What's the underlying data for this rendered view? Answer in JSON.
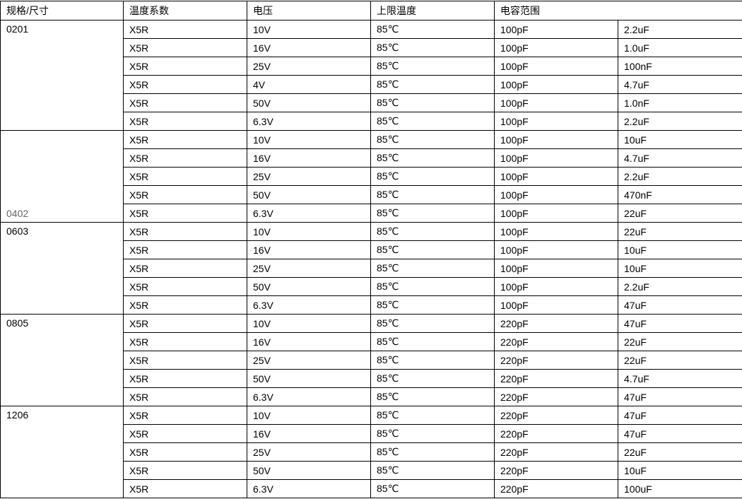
{
  "headers": [
    "规格/尺寸",
    "温度系数",
    "电压",
    "上限温度",
    "电容范围"
  ],
  "groups": [
    {
      "size": "0201",
      "size_color": "#000000",
      "size_align": "top",
      "rows": [
        [
          "X5R",
          "10V",
          "85℃",
          "100pF",
          "2.2uF"
        ],
        [
          "X5R",
          "16V",
          "85℃",
          "100pF",
          "1.0uF"
        ],
        [
          "X5R",
          "25V",
          "85℃",
          "100pF",
          "100nF"
        ],
        [
          "X5R",
          "4V",
          "85℃",
          "100pF",
          "4.7uF"
        ],
        [
          "X5R",
          "50V",
          "85℃",
          "100pF",
          "1.0nF"
        ],
        [
          "X5R",
          "6.3V",
          "85℃",
          "100pF",
          "2.2uF"
        ]
      ]
    },
    {
      "size": "0402",
      "size_color": "#666666",
      "size_align": "bottom",
      "rows": [
        [
          "X5R",
          "10V",
          "85℃",
          "100pF",
          "10uF"
        ],
        [
          "X5R",
          "16V",
          "85℃",
          "100pF",
          "4.7uF"
        ],
        [
          "X5R",
          "25V",
          "85℃",
          "100pF",
          "2.2uF"
        ],
        [
          "X5R",
          "50V",
          "85℃",
          "100pF",
          "470nF"
        ],
        [
          "X5R",
          "6.3V",
          "85℃",
          "100pF",
          "22uF"
        ]
      ]
    },
    {
      "size": "0603",
      "size_color": "#000000",
      "size_align": "top",
      "rows": [
        [
          "X5R",
          "10V",
          "85℃",
          "100pF",
          "22uF"
        ],
        [
          "X5R",
          "16V",
          "85℃",
          "100pF",
          "10uF"
        ],
        [
          "X5R",
          "25V",
          "85℃",
          "100pF",
          "10uF"
        ],
        [
          "X5R",
          "50V",
          "85℃",
          "100pF",
          "2.2uF"
        ],
        [
          "X5R",
          "6.3V",
          "85℃",
          "100pF",
          "47uF"
        ]
      ]
    },
    {
      "size": "0805",
      "size_color": "#000000",
      "size_align": "top",
      "rows": [
        [
          "X5R",
          "10V",
          "85℃",
          "220pF",
          "47uF"
        ],
        [
          "X5R",
          "16V",
          "85℃",
          "220pF",
          "22uF"
        ],
        [
          "X5R",
          "25V",
          "85℃",
          "220pF",
          "22uF"
        ],
        [
          "X5R",
          "50V",
          "85℃",
          "220pF",
          "4.7uF"
        ],
        [
          "X5R",
          "6.3V",
          "85℃",
          "220pF",
          "47uF"
        ]
      ]
    },
    {
      "size": "1206",
      "size_color": "#000000",
      "size_align": "top",
      "rows": [
        [
          "X5R",
          "10V",
          "85℃",
          "220pF",
          "47uF"
        ],
        [
          "X5R",
          "16V",
          "85℃",
          "220pF",
          "47uF"
        ],
        [
          "X5R",
          "25V",
          "85℃",
          "220pF",
          "22uF"
        ],
        [
          "X5R",
          "50V",
          "85℃",
          "220pF",
          "10uF"
        ],
        [
          "X5R",
          "6.3V",
          "85℃",
          "220pF",
          "100uF"
        ]
      ]
    }
  ]
}
